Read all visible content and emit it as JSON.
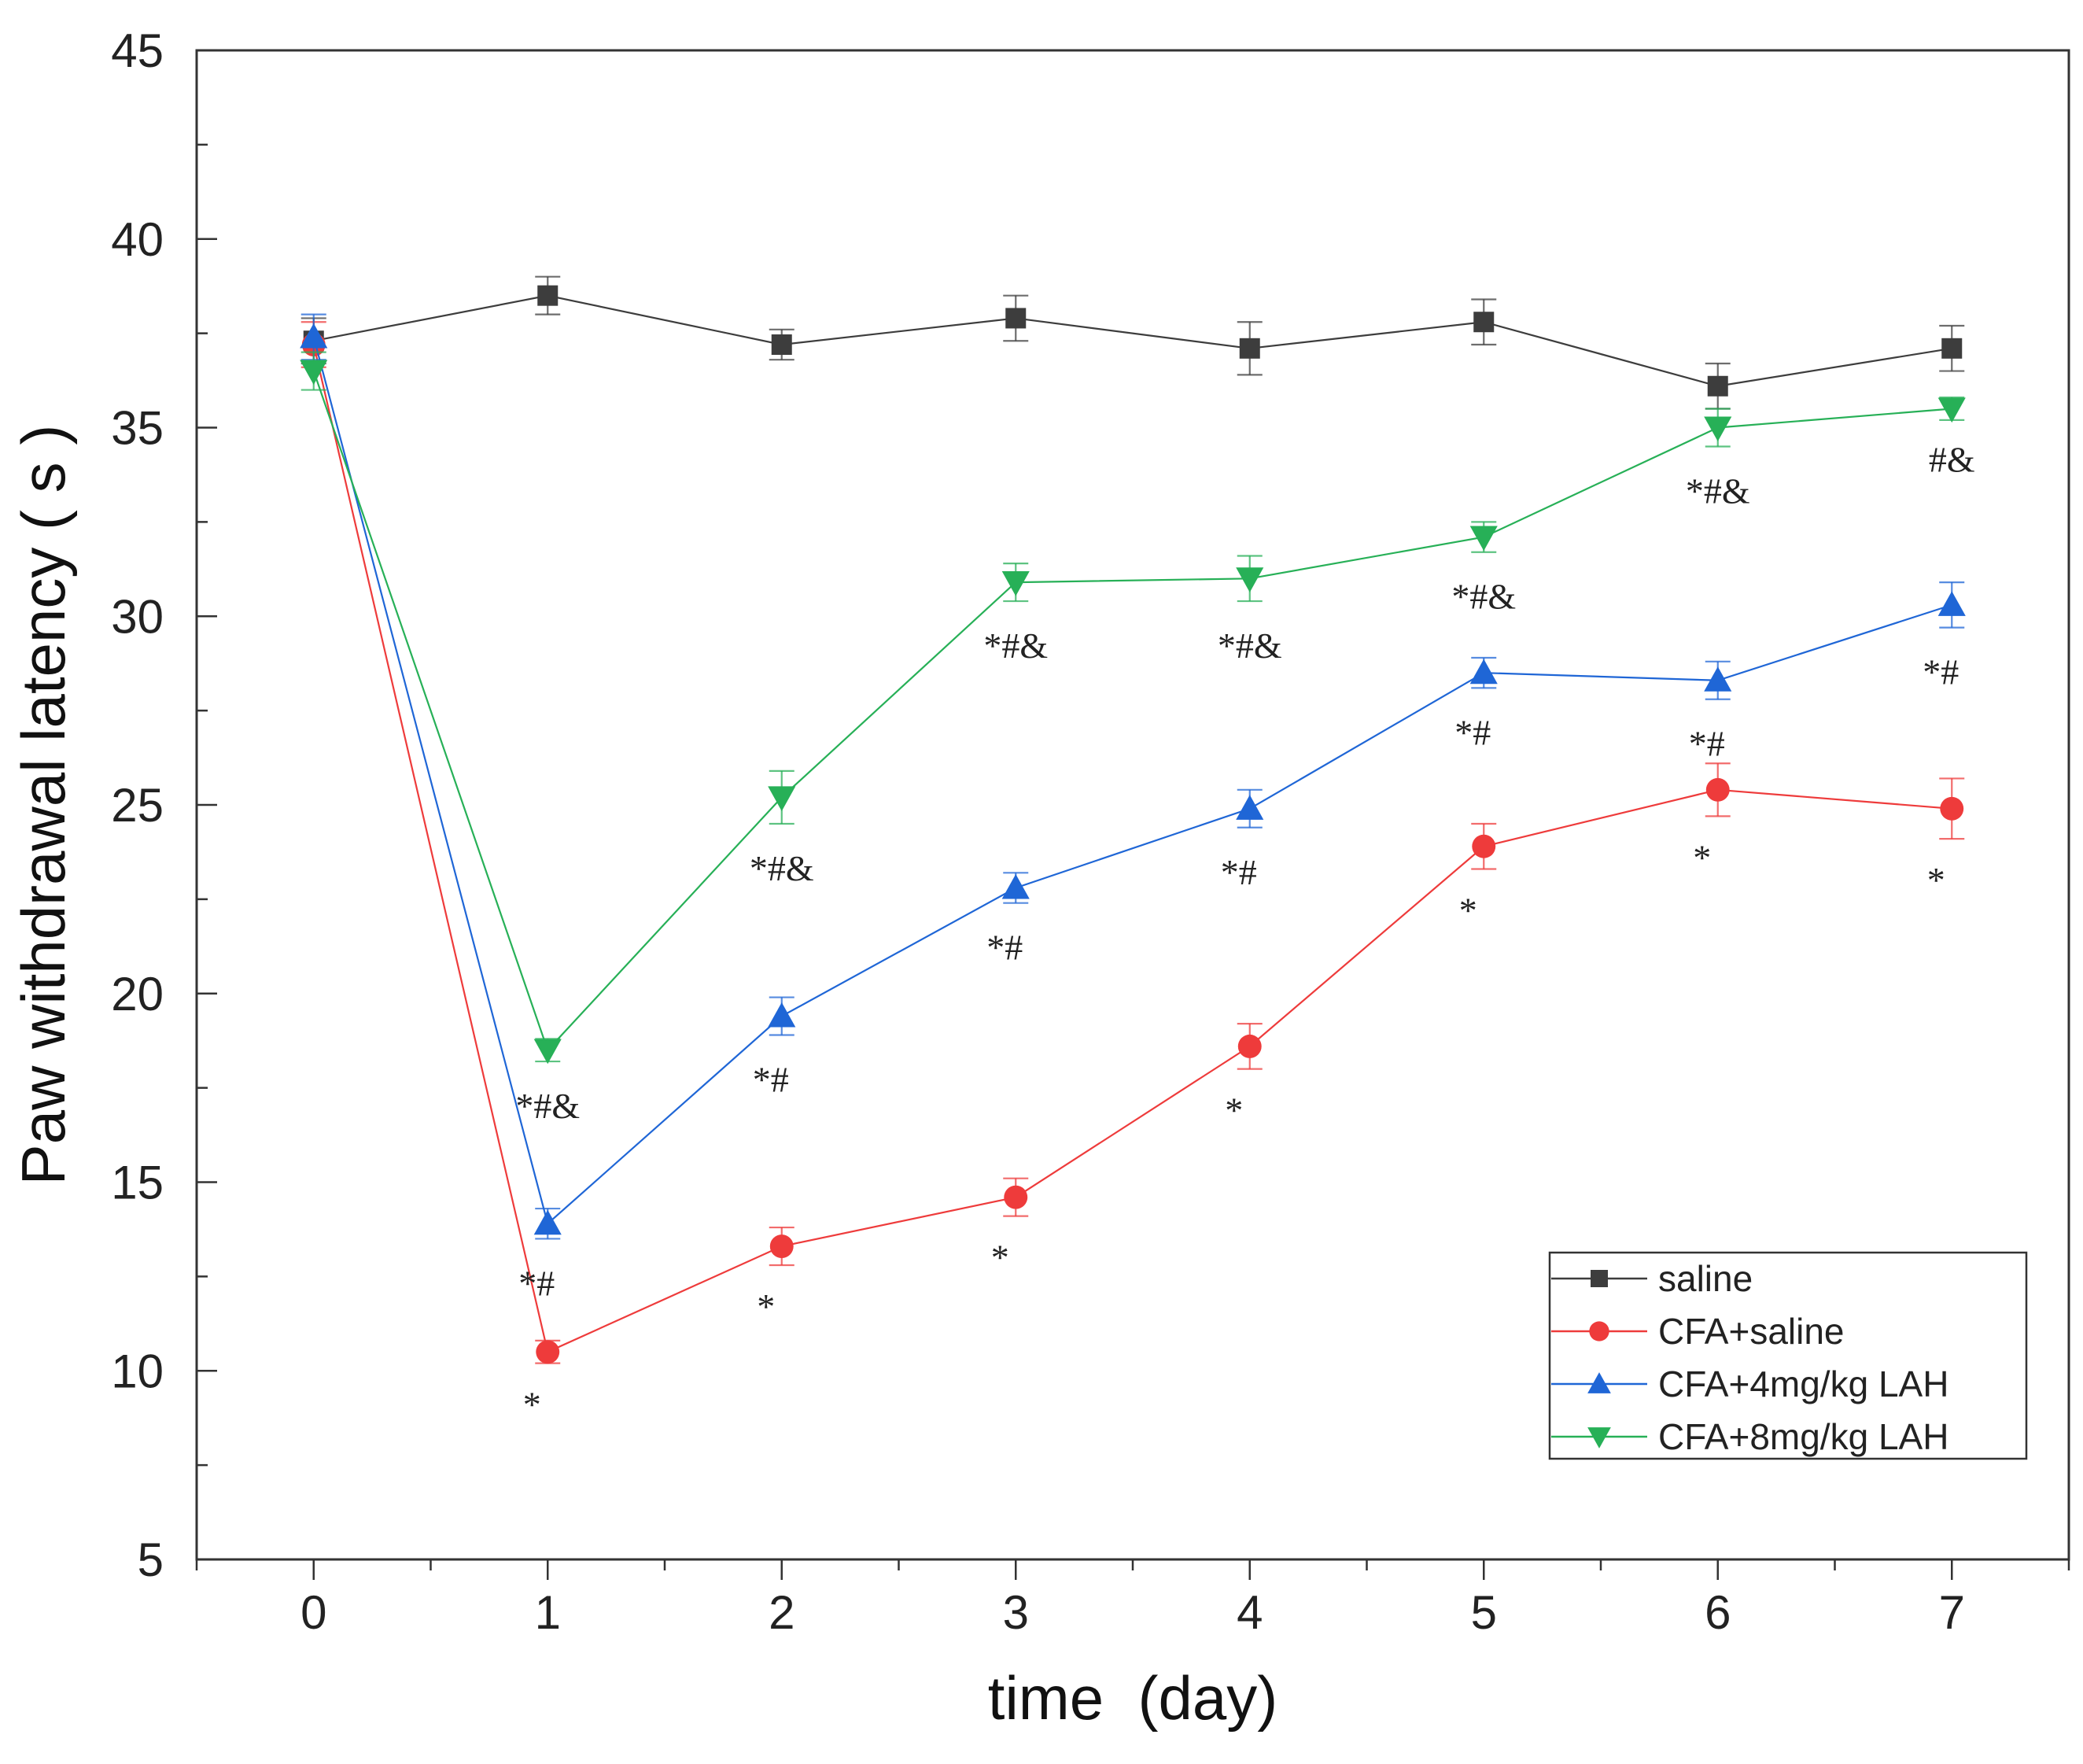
{
  "chart_data": {
    "type": "line",
    "xlabel": "time  (day)",
    "ylabel": "Paw withdrawal latency ( s )",
    "xlim": [
      -0.5,
      7.5
    ],
    "ylim": [
      5,
      45
    ],
    "x_ticks": [
      "0",
      "1",
      "2",
      "3",
      "4",
      "5",
      "6",
      "7"
    ],
    "y_ticks": [
      "5",
      "10",
      "15",
      "20",
      "25",
      "30",
      "35",
      "40",
      "45"
    ],
    "grid": false,
    "legend_position": "bottom-right",
    "x": [
      0,
      1,
      2,
      3,
      4,
      5,
      6,
      7
    ],
    "series": [
      {
        "name": "saline",
        "color": "#3d3d3d",
        "marker": "square",
        "values": [
          37.3,
          38.5,
          37.2,
          37.9,
          37.1,
          37.8,
          36.1,
          37.1
        ],
        "errors": [
          0.6,
          0.5,
          0.4,
          0.6,
          0.7,
          0.6,
          0.6,
          0.6
        ],
        "annotations": [
          "",
          "",
          "",
          "",
          "",
          "",
          "",
          ""
        ]
      },
      {
        "name": "CFA+saline",
        "color": "#ee3b3b",
        "marker": "circle",
        "values": [
          37.2,
          10.5,
          13.3,
          14.6,
          18.6,
          23.9,
          25.4,
          24.9
        ],
        "errors": [
          0.6,
          0.3,
          0.5,
          0.5,
          0.6,
          0.6,
          0.7,
          0.8
        ],
        "annotations": [
          "",
          "*",
          "*",
          "*",
          "*",
          "*",
          "*",
          "*"
        ]
      },
      {
        "name": "CFA+4mg/kg LAH",
        "color": "#1f66d6",
        "marker": "triangle-up",
        "values": [
          37.4,
          13.9,
          19.4,
          22.8,
          24.9,
          28.5,
          28.3,
          30.3
        ],
        "errors": [
          0.6,
          0.4,
          0.5,
          0.4,
          0.5,
          0.4,
          0.5,
          0.6
        ],
        "annotations": [
          "",
          "*#",
          "*#",
          "*#",
          "*#",
          "*#",
          "*#",
          "*#"
        ]
      },
      {
        "name": "CFA+8mg/kg LAH",
        "color": "#27b057",
        "marker": "triangle-down",
        "values": [
          36.5,
          18.5,
          25.2,
          30.9,
          31.0,
          32.1,
          35.0,
          35.5
        ],
        "errors": [
          0.5,
          0.3,
          0.7,
          0.5,
          0.6,
          0.4,
          0.5,
          0.3
        ],
        "annotations": [
          "",
          "*#&",
          "*#&",
          "*#&",
          "*#&",
          "*#&",
          "*#&",
          "#&"
        ]
      }
    ]
  }
}
